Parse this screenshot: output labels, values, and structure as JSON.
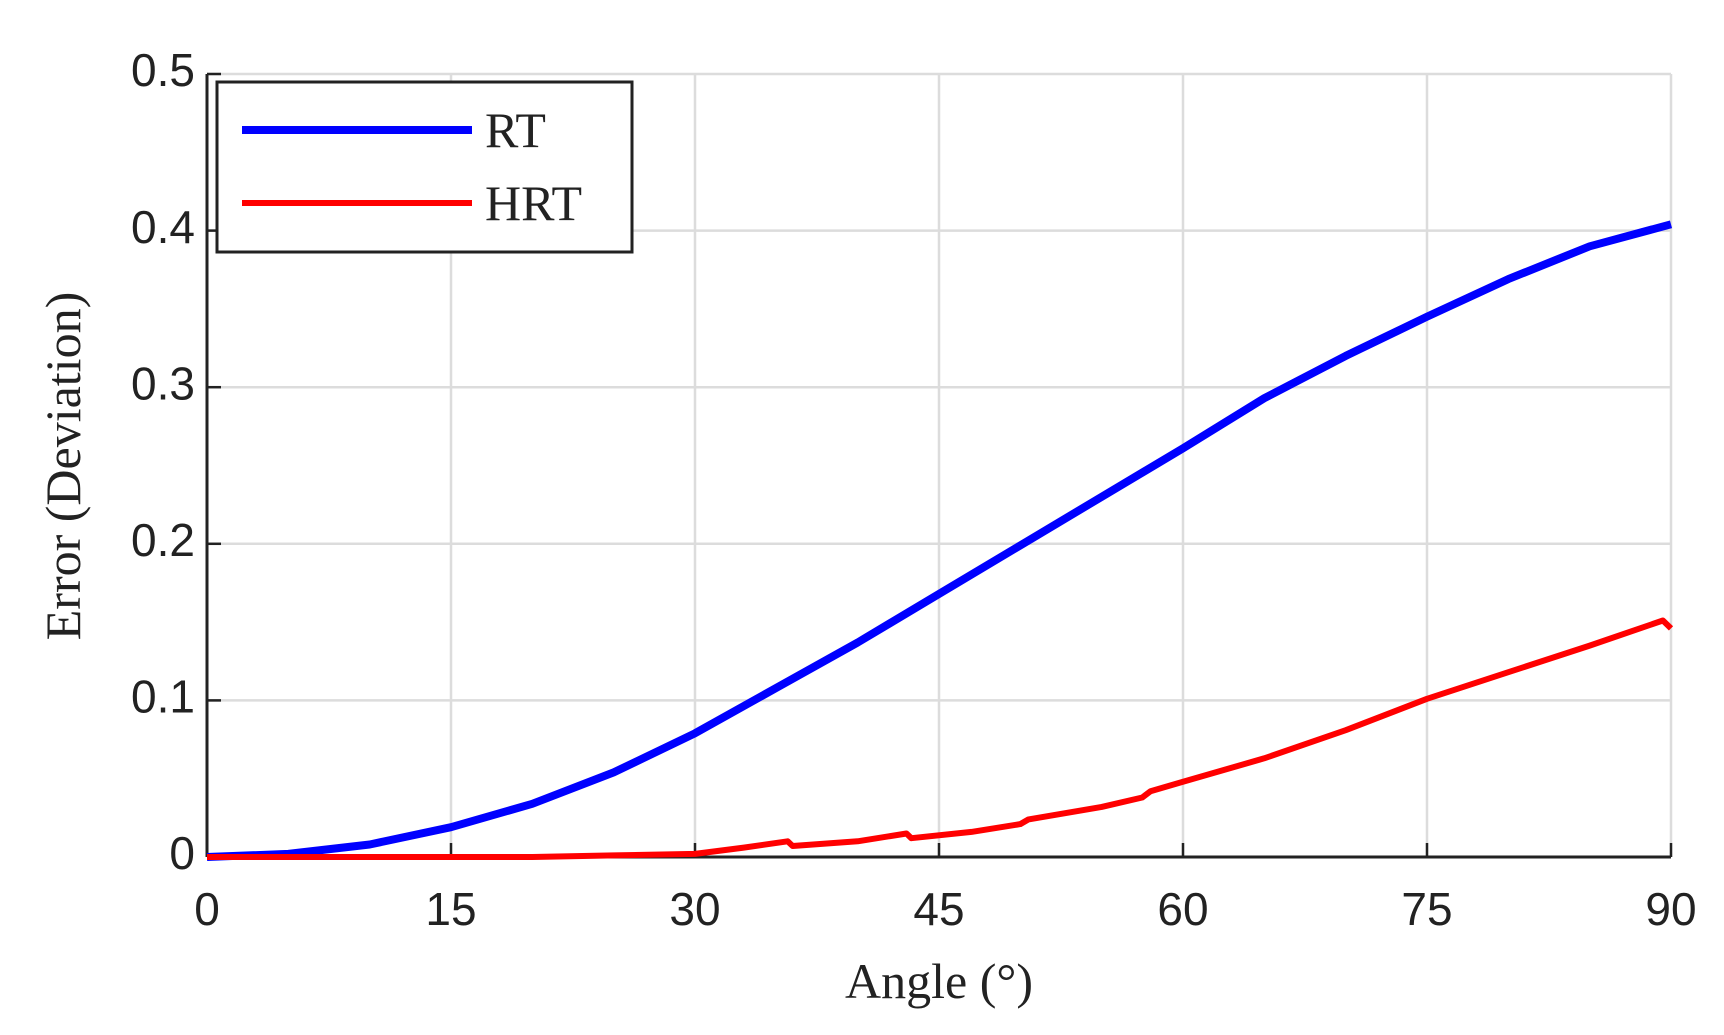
{
  "chart_data": {
    "type": "line",
    "xlabel": "Angle (°)",
    "ylabel": "Error (Deviation)",
    "xlim": [
      0,
      90
    ],
    "ylim": [
      0,
      0.5
    ],
    "xticks": [
      0,
      15,
      30,
      45,
      60,
      75,
      90
    ],
    "yticks": [
      0,
      0.1,
      0.2,
      0.3,
      0.4,
      0.5
    ],
    "grid": true,
    "legend": "upper left",
    "series": [
      {
        "name": "RT",
        "color": "#0000ff",
        "x": [
          0,
          5,
          10,
          15,
          20,
          25,
          30,
          35,
          40,
          45,
          50,
          55,
          60,
          65,
          70,
          75,
          80,
          85,
          90
        ],
        "values": [
          0,
          0.002,
          0.008,
          0.019,
          0.034,
          0.054,
          0.079,
          0.108,
          0.137,
          0.168,
          0.199,
          0.23,
          0.261,
          0.293,
          0.32,
          0.345,
          0.369,
          0.39,
          0.404
        ]
      },
      {
        "name": "HRT",
        "color": "#ff0000",
        "x": [
          0,
          10,
          20,
          25,
          30,
          33,
          35.7,
          36,
          40,
          43,
          43.3,
          47,
          50,
          50.5,
          55,
          57.5,
          58,
          60,
          65,
          70,
          75,
          80,
          85,
          89.5,
          90
        ],
        "values": [
          0,
          0,
          0,
          0.001,
          0.002,
          0.006,
          0.01,
          0.007,
          0.01,
          0.015,
          0.012,
          0.016,
          0.021,
          0.024,
          0.032,
          0.038,
          0.042,
          0.048,
          0.063,
          0.081,
          0.101,
          0.118,
          0.135,
          0.151,
          0.146
        ]
      }
    ]
  }
}
